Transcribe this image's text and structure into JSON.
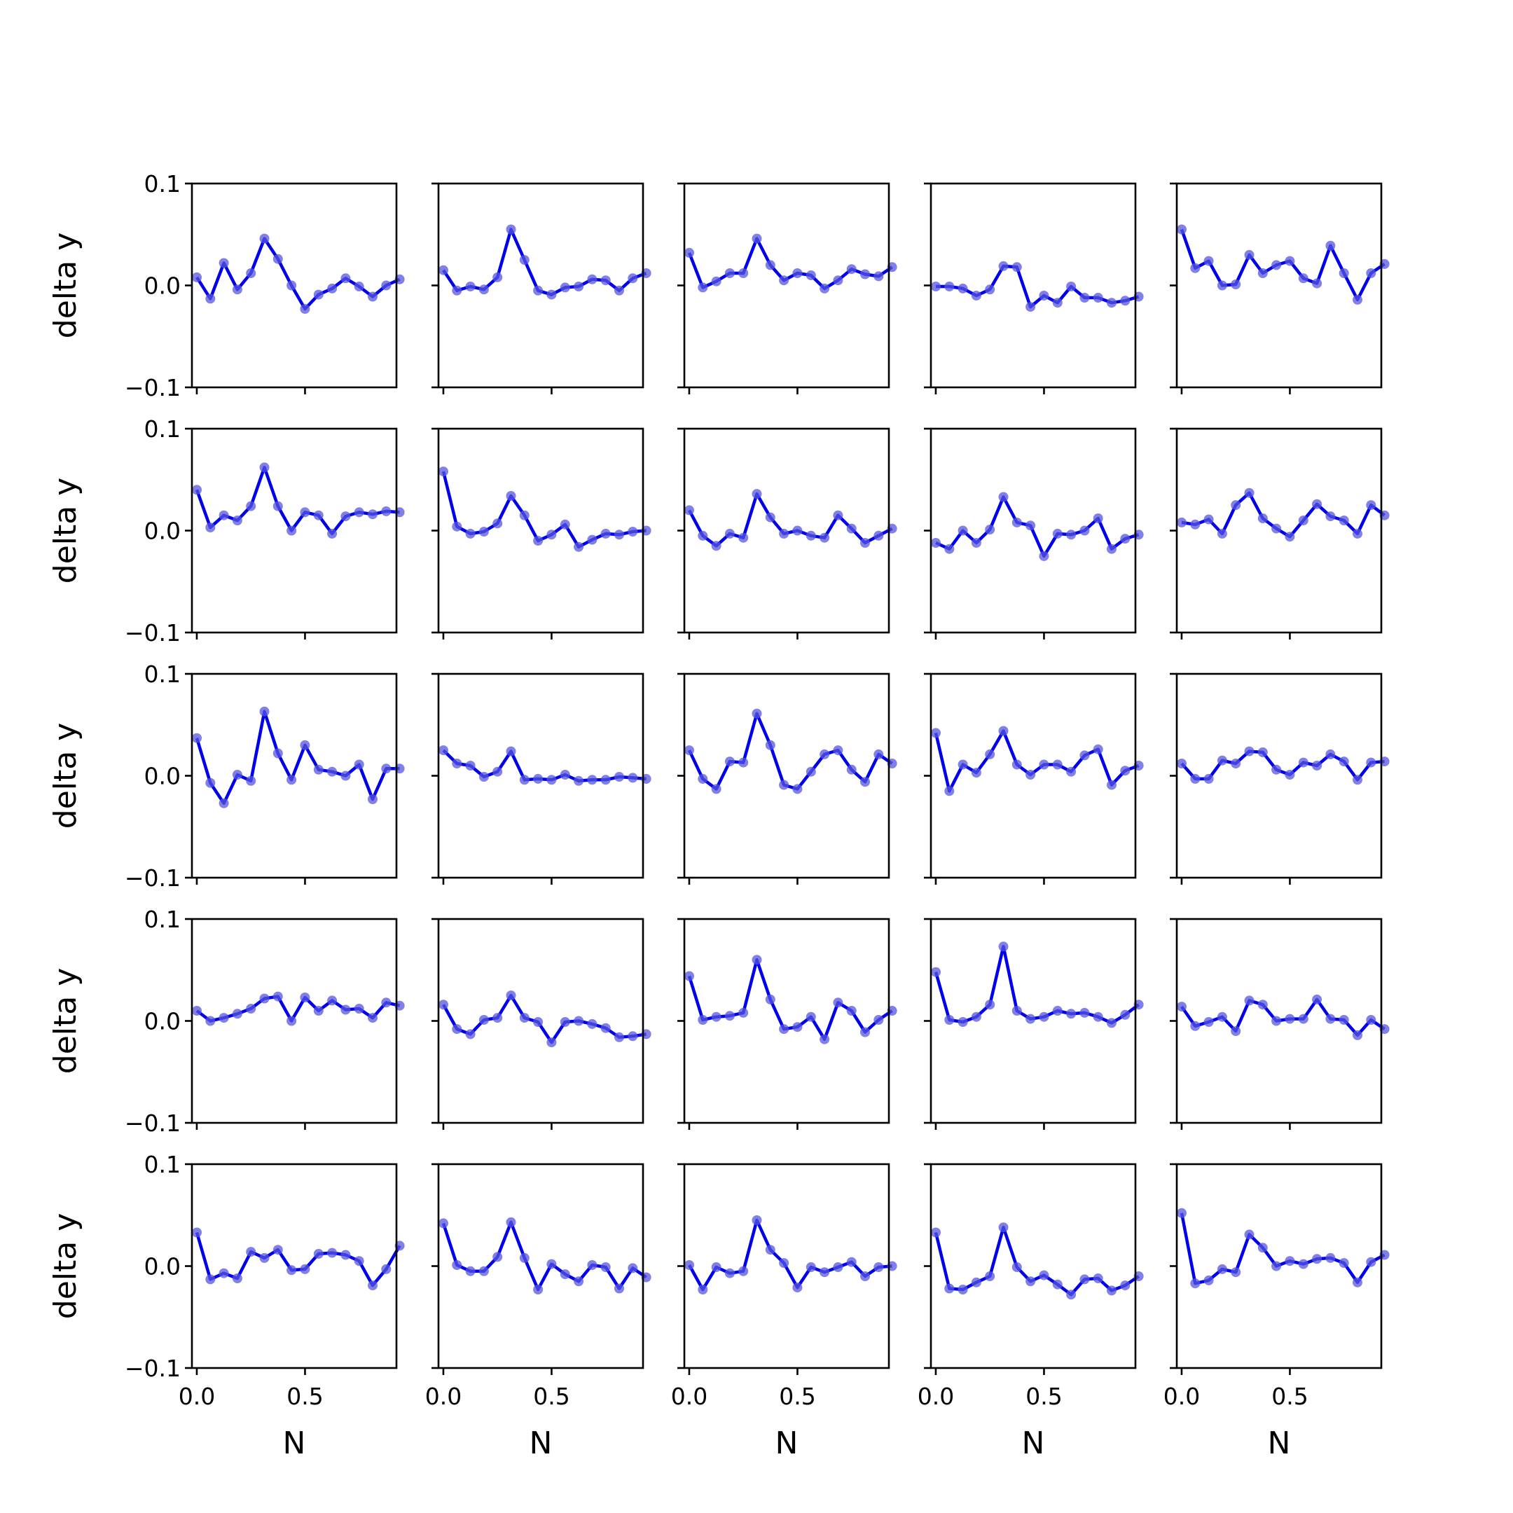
{
  "colors": {
    "line": "#0000ee",
    "marker": "#5555dd",
    "axes": "#000000",
    "background": "#ffffff"
  },
  "chart_data": {
    "type": "line",
    "grid": false,
    "layout": "5x5 small multiples, shared x and y axes",
    "xlabel": "N",
    "ylabel": "delta y",
    "xlim": [
      -0.0225,
      0.9225
    ],
    "ylim": [
      -0.1,
      0.1
    ],
    "xticks": [
      "0.0",
      "0.5"
    ],
    "yticks": [
      "−0.1",
      "0.0",
      "0.1"
    ],
    "x": [
      0.0,
      0.0625,
      0.125,
      0.1875,
      0.25,
      0.3125,
      0.375,
      0.4375,
      0.5,
      0.5625,
      0.625,
      0.6875,
      0.75,
      0.8125,
      0.875,
      0.9375
    ],
    "panels": [
      {
        "values": [
          0.008,
          -0.013,
          0.022,
          -0.004,
          0.012,
          0.046,
          0.026,
          0.0,
          -0.023,
          -0.009,
          -0.003,
          0.007,
          -0.001,
          -0.011,
          0.0,
          0.006
        ]
      },
      {
        "values": [
          0.015,
          -0.005,
          -0.001,
          -0.004,
          0.008,
          0.055,
          0.025,
          -0.005,
          -0.009,
          -0.002,
          -0.001,
          0.006,
          0.005,
          -0.005,
          0.007,
          0.012
        ]
      },
      {
        "values": [
          0.032,
          -0.002,
          0.004,
          0.012,
          0.012,
          0.046,
          0.02,
          0.005,
          0.012,
          0.01,
          -0.003,
          0.005,
          0.016,
          0.011,
          0.009,
          0.018
        ]
      },
      {
        "values": [
          -0.001,
          -0.001,
          -0.003,
          -0.01,
          -0.004,
          0.019,
          0.018,
          -0.021,
          -0.01,
          -0.017,
          -0.001,
          -0.012,
          -0.012,
          -0.017,
          -0.015,
          -0.011
        ]
      },
      {
        "values": [
          0.055,
          0.017,
          0.024,
          0.0,
          0.001,
          0.03,
          0.012,
          0.02,
          0.024,
          0.007,
          0.002,
          0.039,
          0.012,
          -0.014,
          0.012,
          0.021
        ]
      },
      {
        "values": [
          0.04,
          0.003,
          0.015,
          0.01,
          0.024,
          0.062,
          0.024,
          0.0,
          0.018,
          0.015,
          -0.003,
          0.014,
          0.018,
          0.016,
          0.019,
          0.018
        ]
      },
      {
        "values": [
          0.058,
          0.004,
          -0.003,
          -0.001,
          0.007,
          0.034,
          0.015,
          -0.01,
          -0.004,
          0.006,
          -0.016,
          -0.009,
          -0.003,
          -0.004,
          -0.001,
          0.0
        ]
      },
      {
        "values": [
          0.02,
          -0.005,
          -0.015,
          -0.003,
          -0.007,
          0.036,
          0.013,
          -0.003,
          0.0,
          -0.005,
          -0.007,
          0.015,
          0.002,
          -0.012,
          -0.005,
          0.002
        ]
      },
      {
        "values": [
          -0.012,
          -0.018,
          0.0,
          -0.012,
          0.001,
          0.033,
          0.008,
          0.005,
          -0.025,
          -0.003,
          -0.004,
          0.0,
          0.012,
          -0.018,
          -0.008,
          -0.004
        ]
      },
      {
        "values": [
          0.008,
          0.006,
          0.011,
          -0.003,
          0.025,
          0.037,
          0.012,
          0.002,
          -0.006,
          0.01,
          0.026,
          0.014,
          0.01,
          -0.003,
          0.025,
          0.015
        ]
      },
      {
        "values": [
          0.037,
          -0.007,
          -0.027,
          0.001,
          -0.005,
          0.063,
          0.022,
          -0.004,
          0.03,
          0.006,
          0.004,
          0.0,
          0.011,
          -0.023,
          0.007,
          0.007
        ]
      },
      {
        "values": [
          0.025,
          0.012,
          0.01,
          -0.001,
          0.004,
          0.024,
          -0.004,
          -0.003,
          -0.004,
          0.001,
          -0.005,
          -0.004,
          -0.004,
          -0.001,
          -0.002,
          -0.003
        ]
      },
      {
        "values": [
          0.025,
          -0.003,
          -0.013,
          0.014,
          0.013,
          0.061,
          0.03,
          -0.009,
          -0.013,
          0.004,
          0.021,
          0.025,
          0.006,
          -0.006,
          0.021,
          0.012
        ]
      },
      {
        "values": [
          0.042,
          -0.015,
          0.011,
          0.003,
          0.021,
          0.044,
          0.011,
          0.001,
          0.011,
          0.011,
          0.004,
          0.02,
          0.026,
          -0.009,
          0.005,
          0.01
        ]
      },
      {
        "values": [
          0.012,
          -0.003,
          -0.003,
          0.015,
          0.012,
          0.024,
          0.023,
          0.006,
          0.001,
          0.013,
          0.01,
          0.021,
          0.014,
          -0.004,
          0.013,
          0.014
        ]
      },
      {
        "values": [
          0.01,
          0.0,
          0.003,
          0.007,
          0.012,
          0.022,
          0.024,
          0.0,
          0.023,
          0.01,
          0.02,
          0.011,
          0.012,
          0.003,
          0.018,
          0.015
        ]
      },
      {
        "values": [
          0.016,
          -0.008,
          -0.013,
          0.001,
          0.003,
          0.025,
          0.003,
          -0.001,
          -0.021,
          -0.001,
          0.0,
          -0.003,
          -0.007,
          -0.016,
          -0.015,
          -0.013
        ]
      },
      {
        "values": [
          0.044,
          0.001,
          0.004,
          0.005,
          0.008,
          0.06,
          0.021,
          -0.008,
          -0.006,
          0.004,
          -0.018,
          0.018,
          0.01,
          -0.011,
          0.001,
          0.01
        ]
      },
      {
        "values": [
          0.048,
          0.001,
          -0.001,
          0.004,
          0.016,
          0.073,
          0.01,
          0.002,
          0.004,
          0.01,
          0.007,
          0.008,
          0.004,
          -0.002,
          0.006,
          0.016
        ]
      },
      {
        "values": [
          0.014,
          -0.005,
          -0.001,
          0.004,
          -0.01,
          0.02,
          0.016,
          0.0,
          0.002,
          0.002,
          0.021,
          0.002,
          0.001,
          -0.014,
          0.001,
          -0.008
        ]
      },
      {
        "values": [
          0.033,
          -0.013,
          -0.007,
          -0.012,
          0.014,
          0.008,
          0.016,
          -0.004,
          -0.003,
          0.012,
          0.013,
          0.011,
          0.005,
          -0.019,
          -0.003,
          0.02
        ]
      },
      {
        "values": [
          0.042,
          0.001,
          -0.005,
          -0.005,
          0.009,
          0.043,
          0.008,
          -0.023,
          0.002,
          -0.008,
          -0.015,
          0.001,
          -0.001,
          -0.022,
          -0.002,
          -0.011
        ]
      },
      {
        "values": [
          0.001,
          -0.023,
          -0.001,
          -0.007,
          -0.005,
          0.045,
          0.016,
          0.003,
          -0.021,
          -0.001,
          -0.006,
          -0.001,
          0.004,
          -0.01,
          -0.001,
          0.0
        ]
      },
      {
        "values": [
          0.033,
          -0.022,
          -0.023,
          -0.016,
          -0.01,
          0.038,
          -0.001,
          -0.015,
          -0.009,
          -0.018,
          -0.028,
          -0.013,
          -0.012,
          -0.024,
          -0.019,
          -0.01
        ]
      },
      {
        "values": [
          0.052,
          -0.017,
          -0.014,
          -0.003,
          -0.006,
          0.031,
          0.018,
          0.0,
          0.005,
          0.002,
          0.007,
          0.008,
          0.003,
          -0.016,
          0.004,
          0.011
        ]
      }
    ]
  }
}
